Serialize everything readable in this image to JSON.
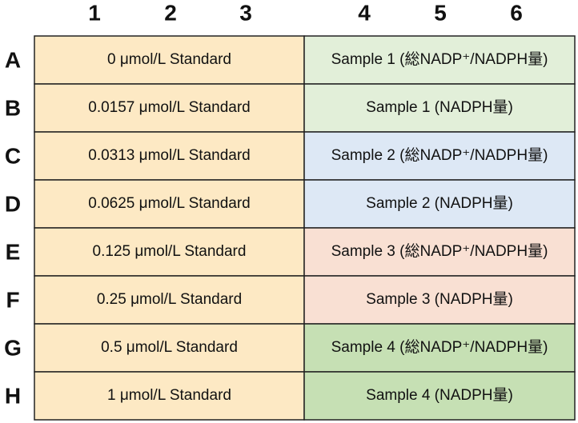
{
  "column_headers": [
    "1",
    "2",
    "3",
    "4",
    "5",
    "6"
  ],
  "rows": [
    {
      "label": "A",
      "standard": "0 μmol/L Standard",
      "sample": "Sample 1 (総NADP⁺/NADPH量)"
    },
    {
      "label": "B",
      "standard": "0.0157 μmol/L Standard",
      "sample": "Sample 1 (NADPH量)"
    },
    {
      "label": "C",
      "standard": "0.0313 μmol/L Standard",
      "sample": "Sample 2 (総NADP⁺/NADPH量)"
    },
    {
      "label": "D",
      "standard": "0.0625 μmol/L Standard",
      "sample": "Sample 2 (NADPH量)"
    },
    {
      "label": "E",
      "standard": "0.125 μmol/L Standard",
      "sample": "Sample 3 (総NADP⁺/NADPH量)"
    },
    {
      "label": "F",
      "standard": "0.25 μmol/L Standard",
      "sample": "Sample 3 (NADPH量)"
    },
    {
      "label": "G",
      "standard": "0.5 μmol/L Standard",
      "sample": "Sample 4 (総NADP⁺/NADPH量)"
    },
    {
      "label": "H",
      "standard": "1 μmol/L Standard",
      "sample": "Sample 4 (NADPH量)"
    }
  ]
}
